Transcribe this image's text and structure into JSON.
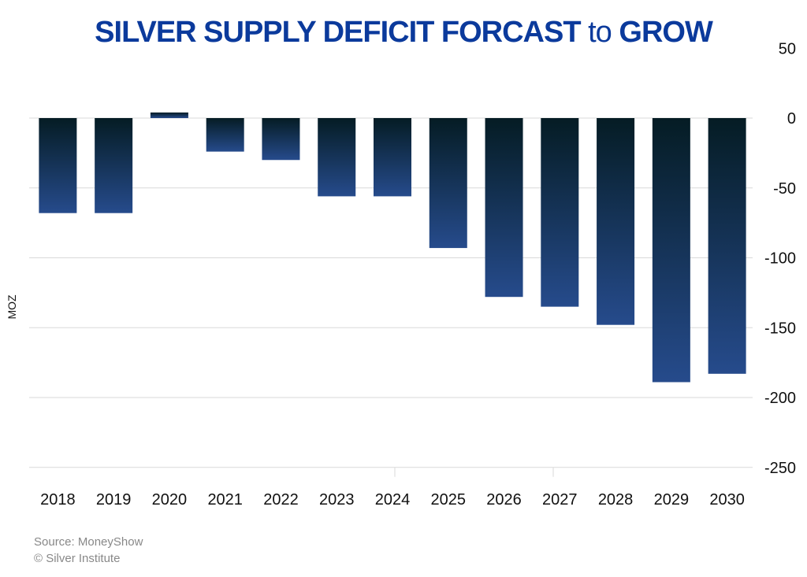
{
  "title": {
    "main": "SILVER SUPPLY DEFICIT FORCAST",
    "connector": "to",
    "end": "GROW"
  },
  "source_lines": [
    "Source: MoneyShow",
    "© Silver Institute"
  ],
  "colors": {
    "title": "#0b3a9c",
    "bar_top": "#051c24",
    "bar_bottom": "#264b8c",
    "grid": "#d9d9d9"
  },
  "chart_data": {
    "type": "bar",
    "title": "SILVER SUPPLY DEFICIT FORCAST to GROW",
    "xlabel": "",
    "ylabel": "MOZ",
    "categories": [
      "2018",
      "2019",
      "2020",
      "2021",
      "2022",
      "2023",
      "2024",
      "2025",
      "2026",
      "2027",
      "2028",
      "2029",
      "2030"
    ],
    "values": [
      -68,
      -68,
      4,
      -24,
      -30,
      -56,
      -56,
      -93,
      -128,
      -135,
      -148,
      -189,
      -183
    ],
    "ylim": [
      -250,
      50
    ],
    "yticks": [
      50,
      0,
      -50,
      -100,
      -150,
      -200,
      -250
    ],
    "ytick_labels": [
      "50",
      "0",
      "-50",
      "-100",
      "-150",
      "-200",
      "-250"
    ],
    "yaxis_position": "right",
    "grid": true,
    "legend": "none"
  }
}
